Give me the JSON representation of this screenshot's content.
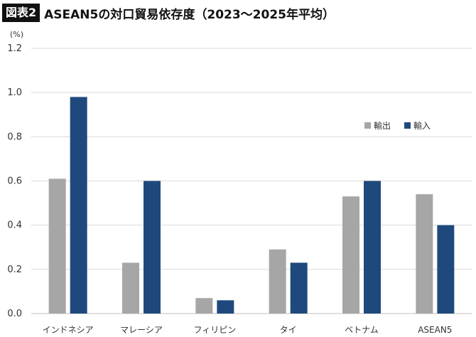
{
  "figure": {
    "badge": "図表2",
    "title": "ASEAN5の対口貿易依存度（2023〜2025年平均）"
  },
  "chart_data": {
    "type": "bar",
    "unit_label": "(%)",
    "categories": [
      "インドネシア",
      "マレーシア",
      "フィリピン",
      "タイ",
      "ベトナム",
      "ASEAN5"
    ],
    "series": [
      {
        "name": "輸出",
        "color": "#a6a6a6",
        "values": [
          0.61,
          0.23,
          0.07,
          0.29,
          0.53,
          0.54
        ]
      },
      {
        "name": "輸入",
        "color": "#1f497d",
        "values": [
          0.98,
          0.6,
          0.06,
          0.23,
          0.6,
          0.4
        ]
      }
    ],
    "ylim": [
      0,
      1.2
    ],
    "yticks": [
      "0.0",
      "0.2",
      "0.4",
      "0.6",
      "0.8",
      "1.0",
      "1.2"
    ],
    "grid": true,
    "legend_position": "right, upper-middle"
  }
}
